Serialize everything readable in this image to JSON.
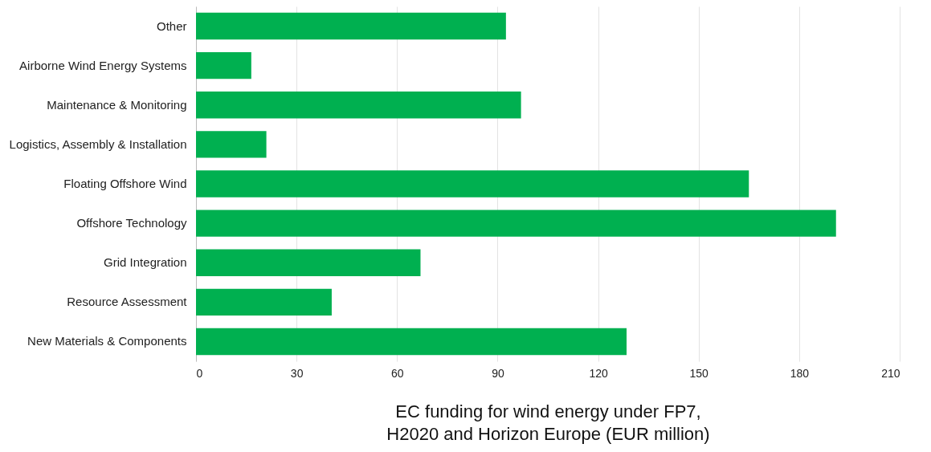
{
  "chart_data": {
    "type": "bar",
    "orientation": "horizontal",
    "xlabel": "EC funding for wind energy under FP7, H2020 and Horizon Europe (EUR million)",
    "categories": [
      "Other",
      "Airborne Wind Energy Systems",
      "Maintenance & Monitoring",
      "Logistics, Assembly & Installation",
      "Floating Offshore Wind",
      "Offshore Technology",
      "Grid Integration",
      "Resource Assessment",
      "New Materials & Components"
    ],
    "values": [
      92.5,
      16.5,
      97,
      21,
      165,
      191,
      67,
      40.5,
      128.5
    ],
    "color": "#00b050",
    "xlim": [
      0,
      210
    ],
    "xticks": [
      0,
      30,
      60,
      90,
      120,
      150,
      180,
      210
    ],
    "grid": "x"
  }
}
